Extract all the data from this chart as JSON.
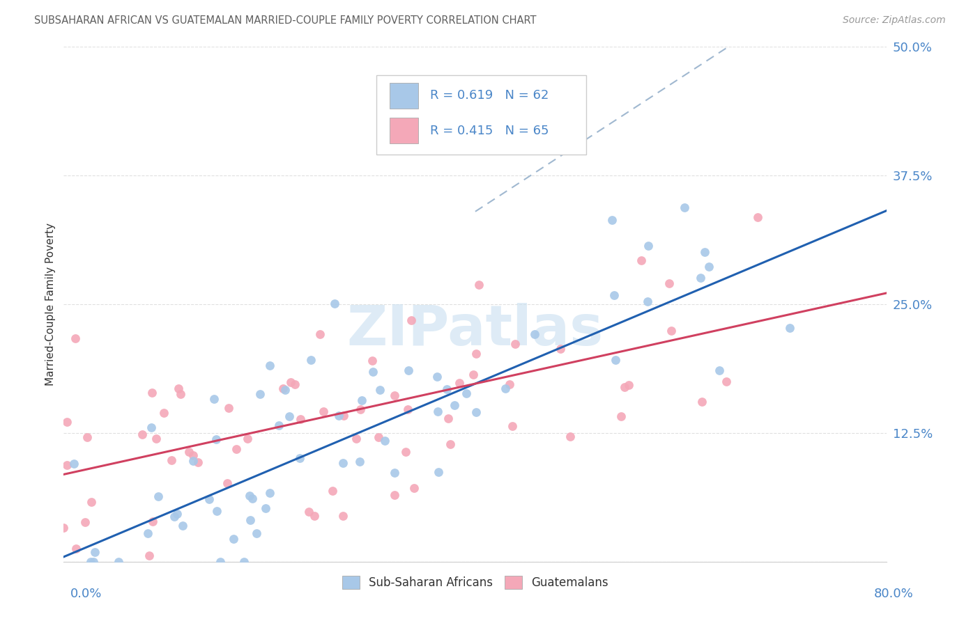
{
  "title": "SUBSAHARAN AFRICAN VS GUATEMALAN MARRIED-COUPLE FAMILY POVERTY CORRELATION CHART",
  "source": "Source: ZipAtlas.com",
  "ylabel": "Married-Couple Family Poverty",
  "legend_labels": [
    "Sub-Saharan Africans",
    "Guatemalans"
  ],
  "blue_color": "#a8c8e8",
  "pink_color": "#f4a8b8",
  "blue_line_color": "#2060b0",
  "pink_line_color": "#d04060",
  "dashed_line_color": "#a0b8d0",
  "watermark_color": "#c8dff0",
  "bg_color": "#ffffff",
  "grid_color": "#e0e0e0",
  "title_color": "#606060",
  "axis_label_color": "#4a86c8",
  "text_color": "#333333",
  "xmin": 0,
  "xmax": 80,
  "ymin": 0,
  "ymax": 50,
  "blue_slope": 0.42,
  "blue_intercept": 0.5,
  "pink_slope": 0.22,
  "pink_intercept": 8.5,
  "dash_x_start": 40,
  "dash_x_end": 80,
  "dash_slope": 0.65,
  "dash_intercept": 8.0
}
